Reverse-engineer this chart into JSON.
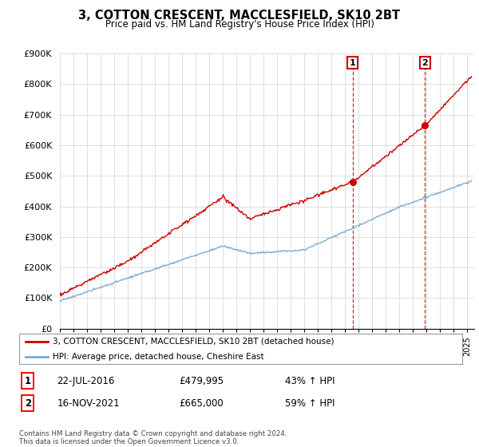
{
  "title": "3, COTTON CRESCENT, MACCLESFIELD, SK10 2BT",
  "subtitle": "Price paid vs. HM Land Registry's House Price Index (HPI)",
  "ylim": [
    0,
    900000
  ],
  "xlim_left": 1995,
  "xlim_right": 2025.5,
  "red_color": "#cc0000",
  "blue_color": "#7aadd4",
  "sale1_x": 2016.55,
  "sale1_y": 479995,
  "sale2_x": 2021.88,
  "sale2_y": 665000,
  "legend_line1": "3, COTTON CRESCENT, MACCLESFIELD, SK10 2BT (detached house)",
  "legend_line2": "HPI: Average price, detached house, Cheshire East",
  "sale1_date": "22-JUL-2016",
  "sale1_price": "£479,995",
  "sale1_hpi": "43% ↑ HPI",
  "sale2_date": "16-NOV-2021",
  "sale2_price": "£665,000",
  "sale2_hpi": "59% ↑ HPI",
  "footer": "Contains HM Land Registry data © Crown copyright and database right 2024.\nThis data is licensed under the Open Government Licence v3.0.",
  "bg_color": "#ffffff",
  "grid_color": "#dddddd"
}
